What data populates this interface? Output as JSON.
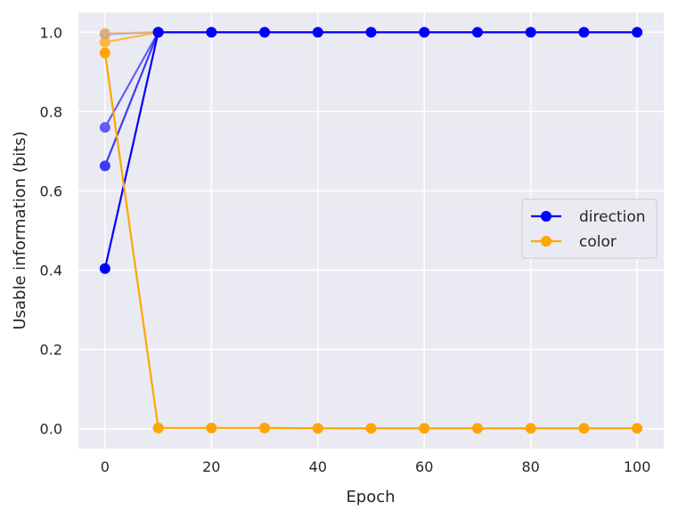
{
  "chart_data": {
    "type": "line",
    "title": "",
    "xlabel": "Epoch",
    "ylabel": "Usable information (bits)",
    "xlim": [
      -5,
      105
    ],
    "ylim": [
      -0.05,
      1.05
    ],
    "xticks": [
      0,
      20,
      40,
      60,
      80,
      100
    ],
    "yticks": [
      0.0,
      0.2,
      0.4,
      0.6,
      0.8,
      1.0
    ],
    "xtick_labels": [
      "0",
      "20",
      "40",
      "60",
      "80",
      "100"
    ],
    "ytick_labels": [
      "0.0",
      "0.2",
      "0.4",
      "0.6",
      "0.8",
      "1.0"
    ],
    "grid": true,
    "legend_position": "center-right",
    "legend": [
      {
        "label": "direction",
        "color": "#0000ff"
      },
      {
        "label": "color",
        "color": "#ffa500"
      }
    ],
    "series": [
      {
        "group": "direction",
        "color": "#0000ff",
        "alpha": 0.25,
        "x": [
          0,
          10
        ],
        "y": [
          0.995,
          1.0
        ]
      },
      {
        "group": "direction",
        "color": "#0000ff",
        "alpha": 0.6,
        "x": [
          0,
          10
        ],
        "y": [
          0.76,
          1.0
        ]
      },
      {
        "group": "direction",
        "color": "#0000ff",
        "alpha": 0.75,
        "x": [
          0,
          10
        ],
        "y": [
          0.663,
          1.0
        ]
      },
      {
        "group": "color",
        "color": "#ffa500",
        "alpha": 0.45,
        "x": [
          0,
          10
        ],
        "y": [
          0.998,
          1.0
        ]
      },
      {
        "group": "color",
        "color": "#ffa500",
        "alpha": 0.7,
        "x": [
          0,
          10
        ],
        "y": [
          0.975,
          1.0
        ]
      },
      {
        "group": "direction",
        "color": "#0000ff",
        "alpha": 1.0,
        "x": [
          0,
          10,
          20,
          30,
          40,
          50,
          60,
          70,
          80,
          90,
          100
        ],
        "y": [
          0.404,
          1.0,
          1.0,
          1.0,
          1.0,
          1.0,
          1.0,
          1.0,
          1.0,
          1.0,
          1.0
        ]
      },
      {
        "group": "color",
        "color": "#ffa500",
        "alpha": 1.0,
        "x": [
          0,
          10,
          20,
          30,
          40,
          50,
          60,
          70,
          80,
          90,
          100
        ],
        "y": [
          0.948,
          0.002,
          0.002,
          0.002,
          0.001,
          0.001,
          0.001,
          0.001,
          0.001,
          0.001,
          0.001
        ]
      }
    ]
  }
}
